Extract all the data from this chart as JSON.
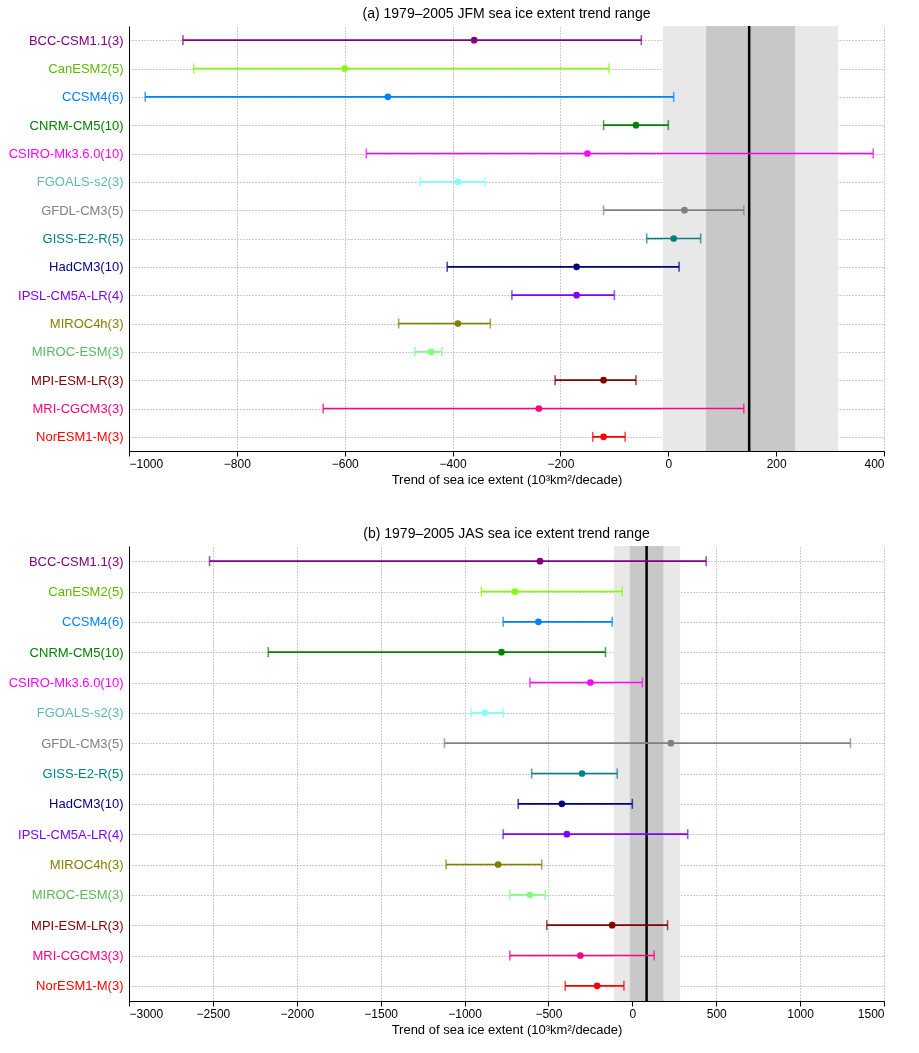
{
  "chart_data": [
    {
      "type": "scatter",
      "orientation": "horizontal",
      "title": "(a) 1979–2005 JFM sea ice extent trend range",
      "xlabel": "Trend of sea ice extent (10³km²/decade)",
      "categories": [
        "BCC-CSM1.1(3)",
        "CanESM2(5)",
        "CCSM4(6)",
        "CNRM-CM5(10)",
        "CSIRO-Mk3.6.0(10)",
        "FGOALS-s2(3)",
        "GFDL-CM3(5)",
        "GISS-E2-R(5)",
        "HadCM3(10)",
        "IPSL-CM5A-LR(4)",
        "MIROC4h(3)",
        "MIROC-ESM(3)",
        "MPI-ESM-LR(3)",
        "MRI-CGCM3(3)",
        "NorESM1-M(3)"
      ],
      "values": [
        -360,
        -600,
        -520,
        -60,
        -150,
        -390,
        30,
        10,
        -170,
        -170,
        -390,
        -440,
        -120,
        -240,
        -120
      ],
      "errors": [
        [
          -900,
          -50
        ],
        [
          -880,
          -110
        ],
        [
          -970,
          10
        ],
        [
          -120,
          0
        ],
        [
          -560,
          380
        ],
        [
          -460,
          -340
        ],
        [
          -120,
          140
        ],
        [
          -40,
          60
        ],
        [
          -410,
          20
        ],
        [
          -290,
          -100
        ],
        [
          -500,
          -330
        ],
        [
          -470,
          -420
        ],
        [
          -210,
          -60
        ],
        [
          -640,
          140
        ],
        [
          -140,
          -80
        ]
      ],
      "colors": [
        "#800080",
        "#80ff00",
        "#0080ff",
        "#008000",
        "#ff00ff",
        "#80ffff",
        "#808080",
        "#008080",
        "#000080",
        "#8000ff",
        "#808000",
        "#80ff80",
        "#800000",
        "#ff0080",
        "#ff0000"
      ],
      "xlim": [
        -1000,
        400
      ],
      "xticks": [
        -1000,
        -800,
        -600,
        -400,
        -200,
        0,
        200,
        400
      ],
      "bands": [
        {
          "axis": "x",
          "from": -10,
          "to": 315,
          "color": "#e8e8e8"
        },
        {
          "axis": "x",
          "from": 70,
          "to": 235,
          "color": "#c8c8c8"
        }
      ],
      "ref_lines": [
        {
          "axis": "x",
          "value": 150,
          "color": "#000000"
        }
      ],
      "grid": true,
      "marker": "circle"
    },
    {
      "type": "scatter",
      "orientation": "horizontal",
      "title": "(b) 1979–2005 JAS sea ice extent trend range",
      "xlabel": "Trend of sea ice extent (10³km²/decade)",
      "categories": [
        "BCC-CSM1.1(3)",
        "CanESM2(5)",
        "CCSM4(6)",
        "CNRM-CM5(10)",
        "CSIRO-Mk3.6.0(10)",
        "FGOALS-s2(3)",
        "GFDL-CM3(5)",
        "GISS-E2-R(5)",
        "HadCM3(10)",
        "IPSL-CM5A-LR(4)",
        "MIROC4h(3)",
        "MIROC-ESM(3)",
        "MPI-ESM-LR(3)",
        "MRI-CGCM3(3)",
        "NorESM1-M(3)"
      ],
      "values": [
        -550,
        -700,
        -560,
        -780,
        -250,
        -880,
        230,
        -300,
        -420,
        -390,
        -800,
        -610,
        -120,
        -310,
        -210
      ],
      "errors": [
        [
          -2520,
          440
        ],
        [
          -900,
          -60
        ],
        [
          -770,
          -120
        ],
        [
          -2170,
          -160
        ],
        [
          -610,
          60
        ],
        [
          -960,
          -770
        ],
        [
          -1120,
          1300
        ],
        [
          -600,
          -90
        ],
        [
          -680,
          0
        ],
        [
          -770,
          330
        ],
        [
          -1110,
          -540
        ],
        [
          -730,
          -520
        ],
        [
          -510,
          210
        ],
        [
          -730,
          130
        ],
        [
          -400,
          -50
        ]
      ],
      "colors": [
        "#800080",
        "#80ff00",
        "#0080ff",
        "#008000",
        "#ff00ff",
        "#80ffff",
        "#808080",
        "#008080",
        "#000080",
        "#8000ff",
        "#808000",
        "#80ff80",
        "#800000",
        "#ff0080",
        "#ff0000"
      ],
      "xlim": [
        -3000,
        1500
      ],
      "xticks": [
        -3000,
        -2500,
        -2000,
        -1500,
        -1000,
        -500,
        0,
        500,
        1000,
        1500
      ],
      "bands": [
        {
          "axis": "x",
          "from": -110,
          "to": 285,
          "color": "#e8e8e8"
        },
        {
          "axis": "x",
          "from": -15,
          "to": 185,
          "color": "#c8c8c8"
        }
      ],
      "ref_lines": [
        {
          "axis": "x",
          "value": 85,
          "color": "#000000"
        }
      ],
      "grid": true,
      "marker": "circle"
    }
  ]
}
